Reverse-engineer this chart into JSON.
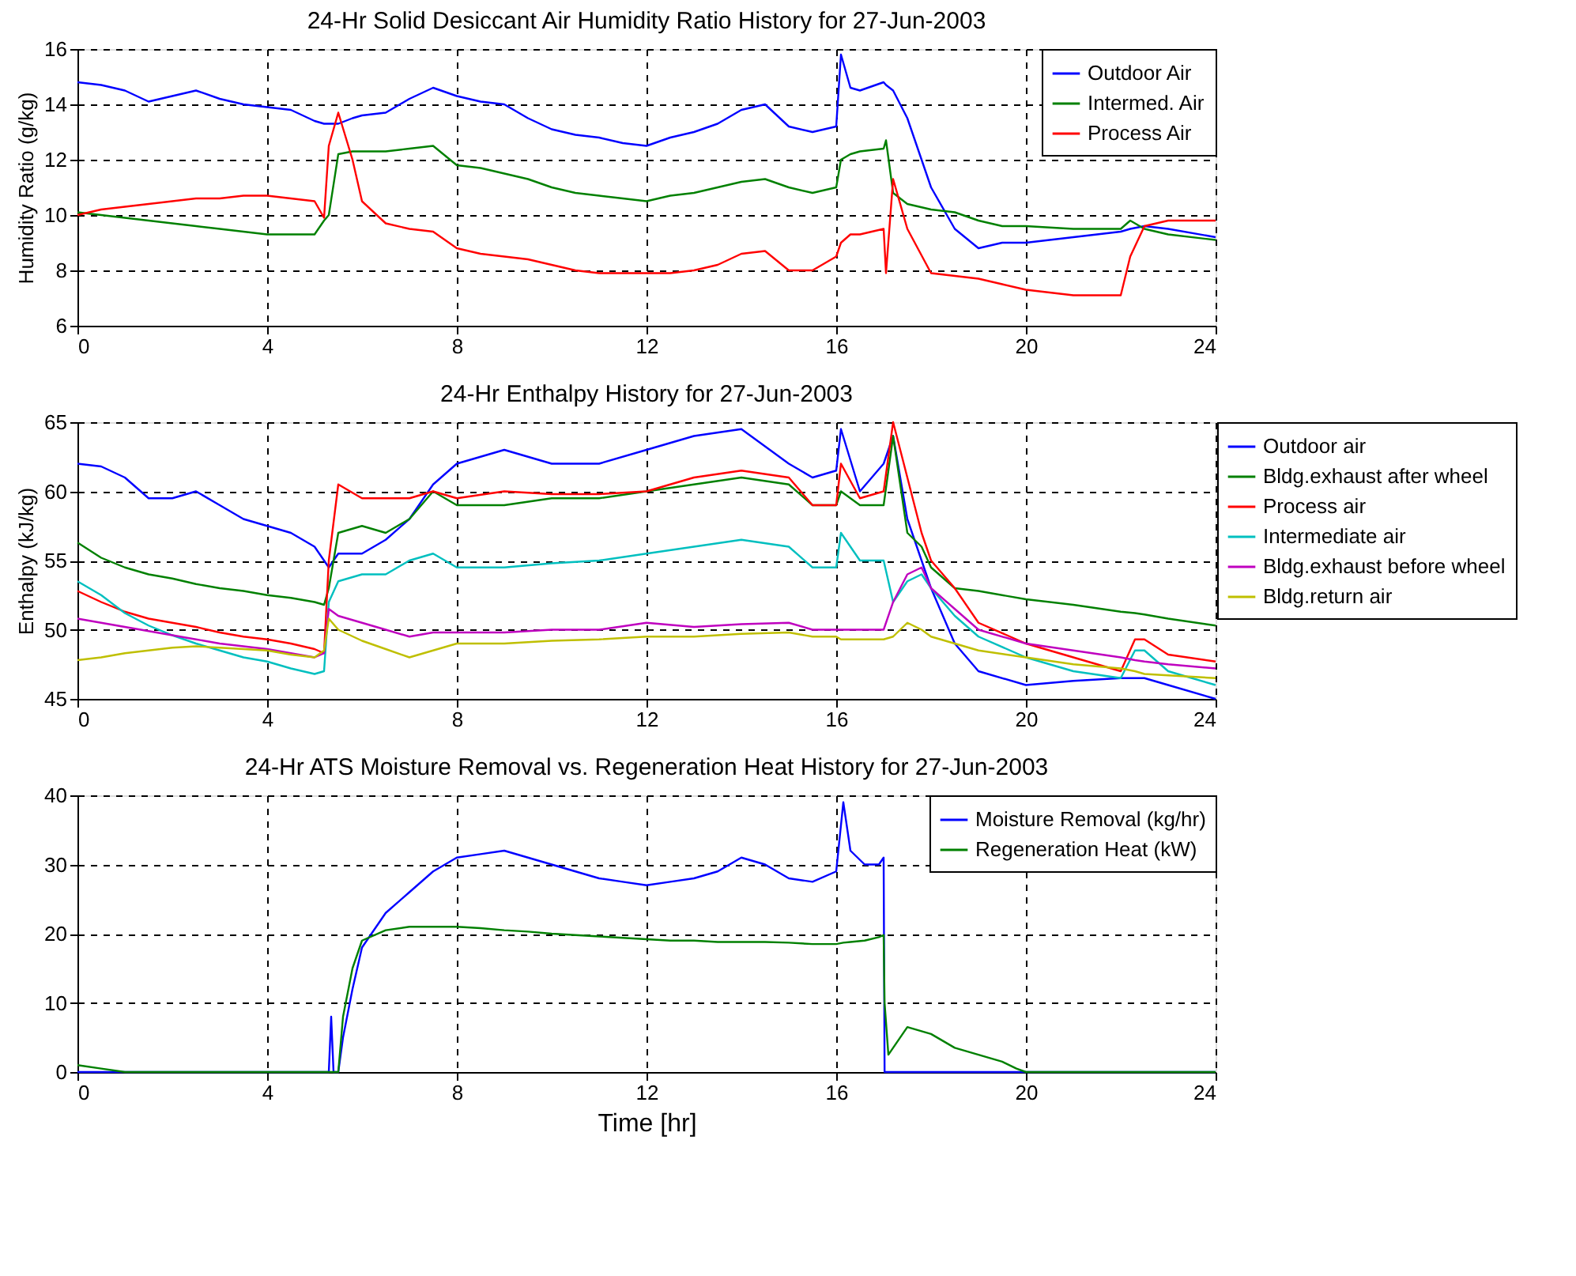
{
  "chart_data": [
    {
      "type": "line",
      "title": "24-Hr Solid Desiccant Air Humidity Ratio History for 27-Jun-2003",
      "ylabel": "Humidity Ratio (g/kg)",
      "xlim": [
        0,
        24
      ],
      "xticks": [
        0,
        4,
        8,
        12,
        16,
        20,
        24
      ],
      "ylim": [
        6,
        16
      ],
      "yticks": [
        6,
        8,
        10,
        12,
        14,
        16
      ],
      "grid": true,
      "legend": "top right",
      "line_style": "solid",
      "x": [
        0,
        0.5,
        1,
        1.5,
        2,
        2.5,
        3,
        3.5,
        4,
        4.5,
        5,
        5.2,
        5.3,
        5.5,
        5.8,
        6,
        6.5,
        7,
        7.5,
        8,
        8.5,
        9,
        9.5,
        10,
        10.5,
        11,
        11.5,
        12,
        12.5,
        13,
        13.5,
        14,
        14.5,
        15,
        15.5,
        16,
        16.1,
        16.3,
        16.5,
        17,
        17.05,
        17.2,
        17.5,
        18,
        18.5,
        19,
        19.5,
        20,
        21,
        22,
        22.2,
        22.5,
        23,
        24
      ],
      "series": [
        {
          "name": "Outdoor Air",
          "color": "#0000ff",
          "values": [
            14.8,
            14.7,
            14.5,
            14.1,
            14.3,
            14.5,
            14.2,
            14.0,
            13.9,
            13.8,
            13.4,
            13.3,
            13.3,
            13.3,
            13.5,
            13.6,
            13.7,
            14.2,
            14.6,
            14.3,
            14.1,
            14.0,
            13.5,
            13.1,
            12.9,
            12.8,
            12.6,
            12.5,
            12.8,
            13.0,
            13.3,
            13.8,
            14.0,
            13.2,
            13.0,
            13.2,
            15.8,
            14.6,
            14.5,
            14.8,
            14.7,
            14.5,
            13.5,
            11.0,
            9.5,
            8.8,
            9.0,
            9.0,
            9.2,
            9.4,
            9.5,
            9.6,
            9.5,
            9.2
          ]
        },
        {
          "name": "Intermed. Air",
          "color": "#008000",
          "values": [
            10.1,
            10.0,
            9.9,
            9.8,
            9.7,
            9.6,
            9.5,
            9.4,
            9.3,
            9.3,
            9.3,
            9.8,
            10.0,
            12.2,
            12.3,
            12.3,
            12.3,
            12.4,
            12.5,
            11.8,
            11.7,
            11.5,
            11.3,
            11.0,
            10.8,
            10.7,
            10.6,
            10.5,
            10.7,
            10.8,
            11.0,
            11.2,
            11.3,
            11.0,
            10.8,
            11.0,
            12.0,
            12.2,
            12.3,
            12.4,
            12.7,
            10.8,
            10.4,
            10.2,
            10.1,
            9.8,
            9.6,
            9.6,
            9.5,
            9.5,
            9.8,
            9.5,
            9.3,
            9.1
          ]
        },
        {
          "name": "Process Air",
          "color": "#ff0000",
          "values": [
            10.0,
            10.2,
            10.3,
            10.4,
            10.5,
            10.6,
            10.6,
            10.7,
            10.7,
            10.6,
            10.5,
            9.9,
            12.5,
            13.7,
            12.0,
            10.5,
            9.7,
            9.5,
            9.4,
            8.8,
            8.6,
            8.5,
            8.4,
            8.2,
            8.0,
            7.9,
            7.9,
            7.9,
            7.9,
            8.0,
            8.2,
            8.6,
            8.7,
            8.0,
            8.0,
            8.5,
            9.0,
            9.3,
            9.3,
            9.5,
            7.9,
            11.3,
            9.5,
            7.9,
            7.8,
            7.7,
            7.5,
            7.3,
            7.1,
            7.1,
            8.5,
            9.6,
            9.8,
            9.8
          ]
        }
      ]
    },
    {
      "type": "line",
      "title": "24-Hr Enthalpy History for 27-Jun-2003",
      "ylabel": "Enthalpy (kJ/kg)",
      "xlim": [
        0,
        24
      ],
      "xticks": [
        0,
        4,
        8,
        12,
        16,
        20,
        24
      ],
      "ylim": [
        45,
        65
      ],
      "yticks": [
        45,
        50,
        55,
        60,
        65
      ],
      "grid": true,
      "legend": "right",
      "line_style": "solid",
      "x": [
        0,
        0.5,
        1,
        1.5,
        2,
        2.5,
        3,
        3.5,
        4,
        4.5,
        5,
        5.2,
        5.3,
        5.5,
        6,
        6.5,
        7,
        7.5,
        8,
        9,
        10,
        11,
        12,
        13,
        14,
        15,
        15.5,
        16,
        16.1,
        16.5,
        17,
        17.2,
        17.5,
        17.8,
        18,
        18.5,
        19,
        20,
        21,
        22,
        22.3,
        22.5,
        23,
        24
      ],
      "series": [
        {
          "name": "Outdoor air",
          "color": "#0000ff",
          "values": [
            62,
            61.8,
            61,
            59.5,
            59.5,
            60,
            59,
            58,
            57.5,
            57,
            56,
            55,
            54.5,
            55.5,
            55.5,
            56.5,
            58,
            60.5,
            62,
            63,
            62,
            62,
            63,
            64,
            64.5,
            62,
            61,
            61.5,
            64.5,
            60,
            62,
            64,
            58,
            55,
            53,
            49,
            47,
            46,
            46.3,
            46.5,
            46.5,
            46.5,
            46,
            45
          ]
        },
        {
          "name": "Bldg.exhaust after wheel",
          "color": "#008000",
          "values": [
            56.3,
            55.2,
            54.5,
            54,
            53.7,
            53.3,
            53,
            52.8,
            52.5,
            52.3,
            52,
            51.8,
            53,
            57,
            57.5,
            57,
            58,
            60,
            59,
            59,
            59.5,
            59.5,
            60,
            60.5,
            61,
            60.5,
            59,
            59,
            60,
            59,
            59,
            64,
            57,
            56,
            54.5,
            53,
            52.8,
            52.2,
            51.8,
            51.3,
            51.2,
            51.1,
            50.8,
            50.3
          ]
        },
        {
          "name": "Process air",
          "color": "#ff0000",
          "values": [
            52.8,
            52,
            51.3,
            50.8,
            50.5,
            50.2,
            49.8,
            49.5,
            49.3,
            49,
            48.6,
            48.3,
            55,
            60.5,
            59.5,
            59.5,
            59.5,
            60,
            59.5,
            60,
            59.8,
            59.8,
            60,
            61,
            61.5,
            61,
            59,
            59,
            62,
            59.5,
            60,
            65,
            61,
            57,
            55,
            53,
            50.5,
            49,
            48,
            47,
            49.3,
            49.3,
            48.2,
            47.7
          ]
        },
        {
          "name": "Intermediate air",
          "color": "#00bfbf",
          "values": [
            53.5,
            52.5,
            51.2,
            50.3,
            49.6,
            49,
            48.5,
            48,
            47.7,
            47.2,
            46.8,
            47,
            52,
            53.5,
            54,
            54,
            55,
            55.5,
            54.5,
            54.5,
            54.8,
            55,
            55.5,
            56,
            56.5,
            56,
            54.5,
            54.5,
            57,
            55,
            55,
            52,
            53.5,
            54,
            53,
            51,
            49.5,
            48,
            47,
            46.5,
            48.5,
            48.5,
            47,
            46
          ]
        },
        {
          "name": "Bldg.exhaust before wheel",
          "color": "#bf00bf",
          "values": [
            50.8,
            50.5,
            50.2,
            49.9,
            49.6,
            49.3,
            49,
            48.8,
            48.6,
            48.3,
            48,
            48.3,
            51.5,
            51,
            50.5,
            50,
            49.5,
            49.8,
            49.8,
            49.8,
            50,
            50,
            50.5,
            50.2,
            50.4,
            50.5,
            50,
            50,
            50,
            50,
            50,
            52,
            54,
            54.5,
            53,
            51.5,
            50,
            49,
            48.5,
            48,
            47.8,
            47.7,
            47.5,
            47.2
          ]
        },
        {
          "name": "Bldg.return air",
          "color": "#bfbf00",
          "values": [
            47.8,
            48,
            48.3,
            48.5,
            48.7,
            48.8,
            48.7,
            48.6,
            48.5,
            48.2,
            48,
            48.5,
            50.8,
            50,
            49.2,
            48.6,
            48,
            48.5,
            49,
            49,
            49.2,
            49.3,
            49.5,
            49.5,
            49.7,
            49.8,
            49.5,
            49.5,
            49.3,
            49.3,
            49.3,
            49.5,
            50.5,
            50,
            49.5,
            49,
            48.5,
            48,
            47.5,
            47.2,
            47,
            46.8,
            46.7,
            46.5
          ]
        }
      ]
    },
    {
      "type": "line",
      "title": "24-Hr ATS Moisture Removal vs. Regeneration Heat History for 27-Jun-2003",
      "xlabel": "Time [hr]",
      "xlim": [
        0,
        24
      ],
      "xticks": [
        0,
        4,
        8,
        12,
        16,
        20,
        24
      ],
      "ylim": [
        0,
        40
      ],
      "yticks": [
        0,
        10,
        20,
        30,
        40
      ],
      "grid": true,
      "legend": "top right",
      "line_style": "solid",
      "x": [
        0,
        0.5,
        1,
        2,
        3,
        4,
        5,
        5.3,
        5.35,
        5.4,
        5.5,
        5.6,
        5.8,
        6,
        6.5,
        7,
        7.5,
        8,
        8.5,
        9,
        9.5,
        10,
        10.5,
        11,
        11.5,
        12,
        12.5,
        13,
        13.5,
        14,
        14.5,
        15,
        15.5,
        16,
        16.15,
        16.3,
        16.6,
        16.9,
        17,
        17.02,
        17.1,
        17.5,
        18,
        18.5,
        19,
        19.5,
        19.8,
        20,
        22,
        24
      ],
      "series": [
        {
          "name": "Moisture Removal (kg/hr)",
          "color": "#0000ff",
          "values": [
            0,
            0,
            0,
            0,
            0,
            0,
            0,
            0,
            8,
            0,
            0,
            5,
            12,
            18,
            23,
            26,
            29,
            31,
            31.5,
            32,
            31,
            30,
            29,
            28,
            27.5,
            27,
            27.5,
            28,
            29,
            31,
            30,
            28,
            27.5,
            29,
            39,
            32,
            30,
            30,
            31,
            0,
            0,
            0,
            0,
            0,
            0,
            0,
            0,
            0,
            0,
            0
          ]
        },
        {
          "name": "Regeneration Heat (kW)",
          "color": "#008000",
          "values": [
            1,
            0.5,
            0,
            0,
            0,
            0,
            0,
            0,
            0,
            0,
            0,
            8,
            15,
            19,
            20.5,
            21,
            21,
            21,
            20.8,
            20.5,
            20.3,
            20,
            19.8,
            19.6,
            19.4,
            19.2,
            19,
            19,
            18.8,
            18.8,
            18.8,
            18.7,
            18.5,
            18.5,
            18.7,
            18.8,
            19,
            19.5,
            19.8,
            10,
            2.5,
            6.5,
            5.5,
            3.5,
            2.5,
            1.5,
            0.5,
            0,
            0,
            0
          ]
        }
      ]
    }
  ]
}
